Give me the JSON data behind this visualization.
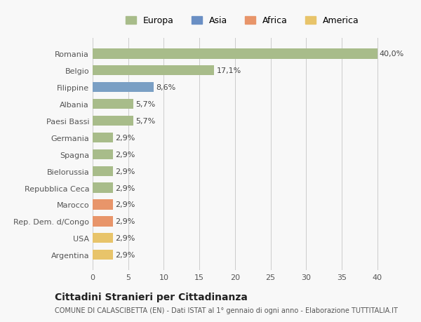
{
  "categories": [
    "Argentina",
    "USA",
    "Rep. Dem. d/Congo",
    "Marocco",
    "Repubblica Ceca",
    "Bielorussia",
    "Spagna",
    "Germania",
    "Paesi Bassi",
    "Albania",
    "Filippine",
    "Belgio",
    "Romania"
  ],
  "values": [
    2.9,
    2.9,
    2.9,
    2.9,
    2.9,
    2.9,
    2.9,
    2.9,
    5.7,
    5.7,
    8.6,
    17.1,
    40.0
  ],
  "labels": [
    "2,9%",
    "2,9%",
    "2,9%",
    "2,9%",
    "2,9%",
    "2,9%",
    "2,9%",
    "2,9%",
    "5,7%",
    "5,7%",
    "8,6%",
    "17,1%",
    "40,0%"
  ],
  "colors": [
    "#e8c46a",
    "#e8c46a",
    "#e8956a",
    "#e8956a",
    "#a8bc8a",
    "#a8bc8a",
    "#a8bc8a",
    "#a8bc8a",
    "#a8bc8a",
    "#a8bc8a",
    "#7a9fc4",
    "#a8bc8a",
    "#a8bc8a"
  ],
  "legend_labels": [
    "Europa",
    "Asia",
    "Africa",
    "America"
  ],
  "legend_colors": [
    "#a8bc8a",
    "#6a8fc4",
    "#e8956a",
    "#e8c46a"
  ],
  "title": "Cittadini Stranieri per Cittadinanza",
  "subtitle": "COMUNE DI CALASCIBETTA (EN) - Dati ISTAT al 1° gennaio di ogni anno - Elaborazione TUTTITALIA.IT",
  "xlim": [
    0,
    42
  ],
  "xticks": [
    0,
    5,
    10,
    15,
    20,
    25,
    30,
    35,
    40
  ],
  "background_color": "#f8f8f8",
  "bar_height": 0.6,
  "grid_color": "#cccccc",
  "text_color": "#555555",
  "label_color": "#444444"
}
